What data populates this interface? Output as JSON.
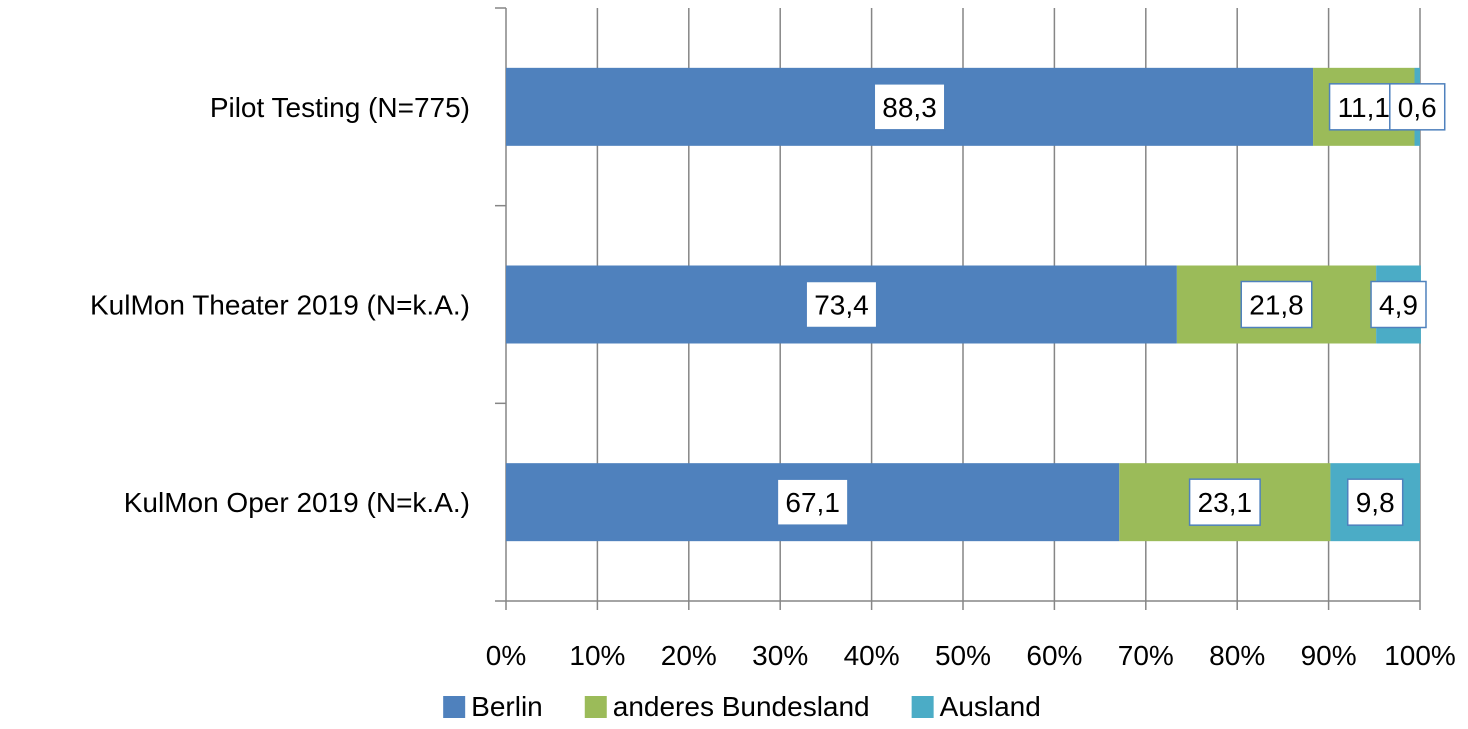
{
  "chart_data": {
    "type": "bar",
    "orientation": "horizontal",
    "stacked": "percent",
    "categories": [
      "Pilot Testing (N=775)",
      "KulMon Theater 2019 (N=k.A.)",
      "KulMon Oper 2019 (N=k.A.)"
    ],
    "series": [
      {
        "name": "Berlin",
        "color": "#4f81bd",
        "values": [
          88.3,
          73.4,
          67.1
        ],
        "labels": [
          "88,3",
          "73,4",
          "67,1"
        ]
      },
      {
        "name": "anderes Bundesland",
        "color": "#9bbb59",
        "values": [
          11.1,
          21.8,
          23.1
        ],
        "labels": [
          "11,1",
          "21,8",
          "23,1"
        ]
      },
      {
        "name": "Ausland",
        "color": "#4bacc6",
        "values": [
          0.6,
          4.9,
          9.8
        ],
        "labels": [
          "0,6",
          "4,9",
          "9,8"
        ]
      }
    ],
    "xlim": [
      0,
      100
    ],
    "xticks": [
      0,
      10,
      20,
      30,
      40,
      50,
      60,
      70,
      80,
      90,
      100
    ],
    "xtick_labels": [
      "0%",
      "10%",
      "20%",
      "30%",
      "40%",
      "50%",
      "60%",
      "70%",
      "80%",
      "90%",
      "100%"
    ],
    "grid": true,
    "legend_position": "bottom",
    "data_label_border_color": "#4f81bd",
    "gridline_color": "#868686"
  }
}
